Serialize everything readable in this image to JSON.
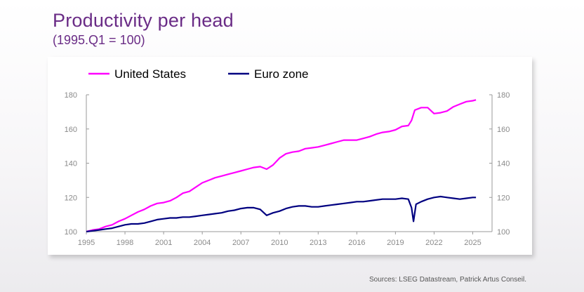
{
  "header": {
    "title": "Productivity per head",
    "subtitle": "(1995.Q1 = 100)"
  },
  "footer": {
    "source": "Sources: LSEG Datastream, Patrick Artus Conseil."
  },
  "chart_data": {
    "type": "line",
    "title": "Productivity per head",
    "subtitle": "(1995.Q1 = 100)",
    "xlabel": "",
    "ylabel": "",
    "xlim": [
      1995,
      2026.5
    ],
    "ylim": [
      100,
      180
    ],
    "x_ticks": [
      1995,
      1998,
      2001,
      2004,
      2007,
      2010,
      2013,
      2016,
      2019,
      2022,
      2025
    ],
    "y_ticks": [
      100,
      120,
      140,
      160,
      180
    ],
    "grid": false,
    "legend_position": "top-left",
    "series": [
      {
        "name": "United States",
        "color": "#ff00ff",
        "points": [
          [
            1995.0,
            100
          ],
          [
            1995.5,
            101
          ],
          [
            1996.0,
            101.5
          ],
          [
            1996.5,
            103
          ],
          [
            1997.0,
            104
          ],
          [
            1997.5,
            106
          ],
          [
            1998.0,
            107.5
          ],
          [
            1998.5,
            109.5
          ],
          [
            1999.0,
            111.5
          ],
          [
            1999.5,
            113
          ],
          [
            2000.0,
            115
          ],
          [
            2000.5,
            116.5
          ],
          [
            2001.0,
            117
          ],
          [
            2001.5,
            118
          ],
          [
            2002.0,
            120
          ],
          [
            2002.5,
            122.5
          ],
          [
            2003.0,
            123.5
          ],
          [
            2003.5,
            126
          ],
          [
            2004.0,
            128.5
          ],
          [
            2004.5,
            130
          ],
          [
            2005.0,
            131.5
          ],
          [
            2005.5,
            132.5
          ],
          [
            2006.0,
            133.5
          ],
          [
            2006.5,
            134.5
          ],
          [
            2007.0,
            135.5
          ],
          [
            2007.5,
            136.5
          ],
          [
            2008.0,
            137.5
          ],
          [
            2008.5,
            138
          ],
          [
            2009.0,
            136.5
          ],
          [
            2009.5,
            139
          ],
          [
            2010.0,
            143
          ],
          [
            2010.5,
            145.5
          ],
          [
            2011.0,
            146.5
          ],
          [
            2011.5,
            147
          ],
          [
            2012.0,
            148.5
          ],
          [
            2012.5,
            149
          ],
          [
            2013.0,
            149.5
          ],
          [
            2013.5,
            150.5
          ],
          [
            2014.0,
            151.5
          ],
          [
            2014.5,
            152.5
          ],
          [
            2015.0,
            153.5
          ],
          [
            2015.5,
            153.5
          ],
          [
            2016.0,
            153.5
          ],
          [
            2016.5,
            154.5
          ],
          [
            2017.0,
            155.5
          ],
          [
            2017.5,
            157
          ],
          [
            2018.0,
            158
          ],
          [
            2018.5,
            158.5
          ],
          [
            2019.0,
            159.5
          ],
          [
            2019.5,
            161.5
          ],
          [
            2020.0,
            162
          ],
          [
            2020.25,
            165
          ],
          [
            2020.5,
            171
          ],
          [
            2021.0,
            172.5
          ],
          [
            2021.5,
            172.5
          ],
          [
            2022.0,
            169
          ],
          [
            2022.5,
            169.5
          ],
          [
            2023.0,
            170.5
          ],
          [
            2023.5,
            173
          ],
          [
            2024.0,
            174.5
          ],
          [
            2024.5,
            176
          ],
          [
            2025.0,
            176.5
          ],
          [
            2025.25,
            177
          ]
        ]
      },
      {
        "name": "Euro zone",
        "color": "#000080",
        "points": [
          [
            1995.0,
            100
          ],
          [
            1995.5,
            100.5
          ],
          [
            1996.0,
            101
          ],
          [
            1996.5,
            101.5
          ],
          [
            1997.0,
            102
          ],
          [
            1997.5,
            103
          ],
          [
            1998.0,
            104
          ],
          [
            1998.5,
            104.5
          ],
          [
            1999.0,
            104.5
          ],
          [
            1999.5,
            105
          ],
          [
            2000.0,
            106
          ],
          [
            2000.5,
            107
          ],
          [
            2001.0,
            107.5
          ],
          [
            2001.5,
            108
          ],
          [
            2002.0,
            108
          ],
          [
            2002.5,
            108.5
          ],
          [
            2003.0,
            108.5
          ],
          [
            2003.5,
            109
          ],
          [
            2004.0,
            109.5
          ],
          [
            2004.5,
            110
          ],
          [
            2005.0,
            110.5
          ],
          [
            2005.5,
            111
          ],
          [
            2006.0,
            112
          ],
          [
            2006.5,
            112.5
          ],
          [
            2007.0,
            113.5
          ],
          [
            2007.5,
            114
          ],
          [
            2008.0,
            114
          ],
          [
            2008.5,
            113
          ],
          [
            2009.0,
            109.5
          ],
          [
            2009.5,
            111
          ],
          [
            2010.0,
            112
          ],
          [
            2010.5,
            113.5
          ],
          [
            2011.0,
            114.5
          ],
          [
            2011.5,
            115
          ],
          [
            2012.0,
            115
          ],
          [
            2012.5,
            114.5
          ],
          [
            2013.0,
            114.5
          ],
          [
            2013.5,
            115
          ],
          [
            2014.0,
            115.5
          ],
          [
            2014.5,
            116
          ],
          [
            2015.0,
            116.5
          ],
          [
            2015.5,
            117
          ],
          [
            2016.0,
            117.5
          ],
          [
            2016.5,
            117.5
          ],
          [
            2017.0,
            118
          ],
          [
            2017.5,
            118.5
          ],
          [
            2018.0,
            119
          ],
          [
            2018.5,
            119
          ],
          [
            2019.0,
            119
          ],
          [
            2019.5,
            119.5
          ],
          [
            2020.0,
            119
          ],
          [
            2020.25,
            114
          ],
          [
            2020.4,
            106
          ],
          [
            2020.6,
            116
          ],
          [
            2021.0,
            117.5
          ],
          [
            2021.5,
            119
          ],
          [
            2022.0,
            120
          ],
          [
            2022.5,
            120.5
          ],
          [
            2023.0,
            120
          ],
          [
            2023.5,
            119.5
          ],
          [
            2024.0,
            119
          ],
          [
            2024.5,
            119.5
          ],
          [
            2025.0,
            120
          ],
          [
            2025.25,
            120
          ]
        ]
      }
    ]
  }
}
